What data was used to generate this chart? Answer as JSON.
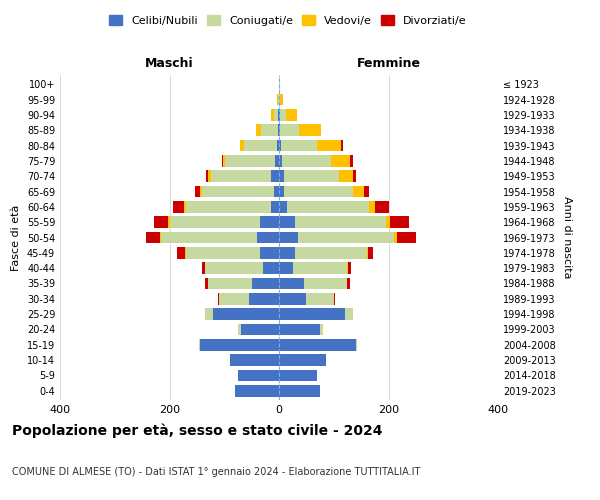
{
  "age_groups": [
    "0-4",
    "5-9",
    "10-14",
    "15-19",
    "20-24",
    "25-29",
    "30-34",
    "35-39",
    "40-44",
    "45-49",
    "50-54",
    "55-59",
    "60-64",
    "65-69",
    "70-74",
    "75-79",
    "80-84",
    "85-89",
    "90-94",
    "95-99",
    "100+"
  ],
  "birth_years": [
    "2019-2023",
    "2014-2018",
    "2009-2013",
    "2004-2008",
    "1999-2003",
    "1994-1998",
    "1989-1993",
    "1984-1988",
    "1979-1983",
    "1974-1978",
    "1969-1973",
    "1964-1968",
    "1959-1963",
    "1954-1958",
    "1949-1953",
    "1944-1948",
    "1939-1943",
    "1934-1938",
    "1929-1933",
    "1924-1928",
    "≤ 1923"
  ],
  "males": {
    "celibi": [
      80,
      75,
      90,
      145,
      70,
      120,
      55,
      50,
      30,
      35,
      40,
      35,
      15,
      10,
      15,
      8,
      4,
      2,
      1,
      0,
      0
    ],
    "coniugati": [
      0,
      0,
      0,
      2,
      5,
      15,
      55,
      80,
      105,
      135,
      175,
      165,
      155,
      130,
      110,
      90,
      60,
      30,
      8,
      2,
      0
    ],
    "vedovi": [
      0,
      0,
      0,
      0,
      0,
      0,
      0,
      0,
      1,
      2,
      3,
      3,
      3,
      5,
      5,
      5,
      8,
      10,
      5,
      2,
      0
    ],
    "divorziati": [
      0,
      0,
      0,
      0,
      0,
      0,
      2,
      5,
      5,
      15,
      25,
      25,
      20,
      8,
      4,
      2,
      0,
      0,
      0,
      0,
      0
    ]
  },
  "females": {
    "nubili": [
      75,
      70,
      85,
      140,
      75,
      120,
      50,
      45,
      25,
      30,
      35,
      30,
      15,
      10,
      10,
      5,
      4,
      2,
      2,
      0,
      0
    ],
    "coniugate": [
      0,
      0,
      0,
      2,
      5,
      15,
      50,
      80,
      100,
      130,
      175,
      165,
      150,
      125,
      100,
      90,
      65,
      35,
      10,
      2,
      0
    ],
    "vedove": [
      0,
      0,
      0,
      0,
      0,
      0,
      0,
      0,
      1,
      2,
      5,
      8,
      10,
      20,
      25,
      35,
      45,
      40,
      20,
      5,
      0
    ],
    "divorziate": [
      0,
      0,
      0,
      0,
      0,
      0,
      2,
      5,
      5,
      10,
      35,
      35,
      25,
      10,
      5,
      5,
      2,
      0,
      0,
      0,
      0
    ]
  },
  "colors": {
    "celibi": "#4472c4",
    "coniugati": "#c5d9a0",
    "vedovi": "#ffc000",
    "divorziati": "#cc0000"
  },
  "xlim": 400,
  "title": "Popolazione per età, sesso e stato civile - 2024",
  "subtitle": "COMUNE DI ALMESE (TO) - Dati ISTAT 1° gennaio 2024 - Elaborazione TUTTITALIA.IT",
  "ylabel": "Fasce di età",
  "ylabel_right": "Anni di nascita",
  "legend_labels": [
    "Celibi/Nubili",
    "Coniugati/e",
    "Vedovi/e",
    "Divorziati/e"
  ],
  "maschi_label": "Maschi",
  "femmine_label": "Femmine"
}
